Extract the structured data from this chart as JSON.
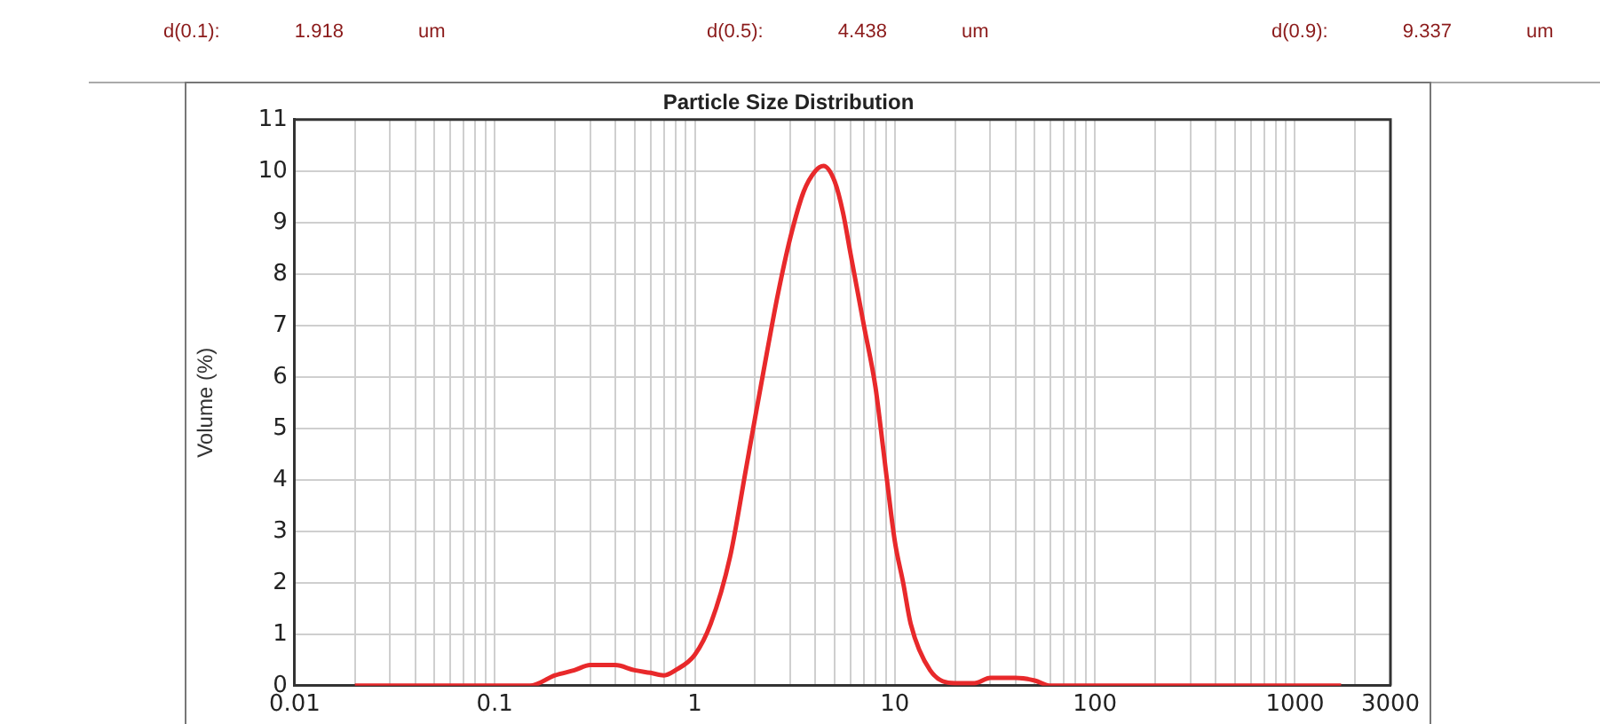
{
  "chart_data": {
    "type": "line",
    "title": "Particle Size Distribution",
    "ylabel": "Volume (%)",
    "annotations": [
      "d(0.1):  1.918  um",
      "d(0.5):  4.438  um",
      "d(0.9):  9.337  um"
    ],
    "log": "x",
    "grid": true,
    "legend": false,
    "marker": "none",
    "line_style": "solid",
    "xlim": [
      0.01,
      3000
    ],
    "ylim": [
      0,
      11
    ],
    "xticks": [
      0.01,
      {
        "value": 0.02,
        "label": null
      },
      {
        "value": 0.03,
        "label": null
      },
      {
        "value": 0.04,
        "label": null
      },
      {
        "value": 0.05,
        "label": null
      },
      {
        "value": 0.06,
        "label": null
      },
      {
        "value": 0.07,
        "label": null
      },
      {
        "value": 0.08,
        "label": null
      },
      {
        "value": 0.09,
        "label": null
      },
      0.1,
      {
        "value": 0.2,
        "label": null
      },
      {
        "value": 0.3,
        "label": null
      },
      {
        "value": 0.4,
        "label": null
      },
      {
        "value": 0.5,
        "label": null
      },
      {
        "value": 0.6,
        "label": null
      },
      {
        "value": 0.7,
        "label": null
      },
      {
        "value": 0.8,
        "label": null
      },
      {
        "value": 0.9,
        "label": null
      },
      1,
      {
        "value": 2,
        "label": null
      },
      {
        "value": 3,
        "label": null
      },
      {
        "value": 4,
        "label": null
      },
      {
        "value": 5,
        "label": null
      },
      {
        "value": 6,
        "label": null
      },
      {
        "value": 7,
        "label": null
      },
      {
        "value": 8,
        "label": null
      },
      {
        "value": 9,
        "label": null
      },
      10,
      {
        "value": 20,
        "label": null
      },
      {
        "value": 30,
        "label": null
      },
      {
        "value": 40,
        "label": null
      },
      {
        "value": 50,
        "label": null
      },
      {
        "value": 60,
        "label": null
      },
      {
        "value": 70,
        "label": null
      },
      {
        "value": 80,
        "label": null
      },
      {
        "value": 90,
        "label": null
      },
      100,
      {
        "value": 200,
        "label": null
      },
      {
        "value": 300,
        "label": null
      },
      {
        "value": 400,
        "label": null
      },
      {
        "value": 500,
        "label": null
      },
      {
        "value": 600,
        "label": null
      },
      {
        "value": 700,
        "label": null
      },
      {
        "value": 800,
        "label": null
      },
      {
        "value": 900,
        "label": null
      },
      1000,
      {
        "value": 2000,
        "label": null
      },
      3000
    ],
    "yticks": [
      0,
      1,
      2,
      3,
      4,
      5,
      6,
      7,
      8,
      9,
      10,
      11
    ],
    "x": [
      0.02,
      0.05,
      0.1,
      0.15,
      0.2,
      0.25,
      0.3,
      0.4,
      0.5,
      0.6,
      0.7,
      0.8,
      1,
      1.2,
      1.5,
      1.8,
      2,
      2.3,
      2.6,
      3,
      3.5,
      4,
      4.4,
      5,
      5.5,
      6,
      7,
      8,
      8.5,
      9,
      10,
      11,
      12,
      15,
      20,
      25,
      30,
      40,
      50,
      60,
      100,
      300,
      1000,
      1700
    ],
    "series": [
      {
        "color": "#e8292b",
        "values": [
          0,
          0,
          0,
          0,
          0.2,
          0.3,
          0.4,
          0.4,
          0.3,
          0.25,
          0.2,
          0.3,
          0.6,
          1.2,
          2.5,
          4.2,
          5.2,
          6.5,
          7.6,
          8.7,
          9.6,
          10,
          10.1,
          9.8,
          9.2,
          8.4,
          7,
          5.8,
          5,
          4.2,
          2.8,
          2,
          1.2,
          0.3,
          0.05,
          0.05,
          0.15,
          0.15,
          0.1,
          0,
          0,
          0,
          0,
          0
        ]
      }
    ]
  }
}
